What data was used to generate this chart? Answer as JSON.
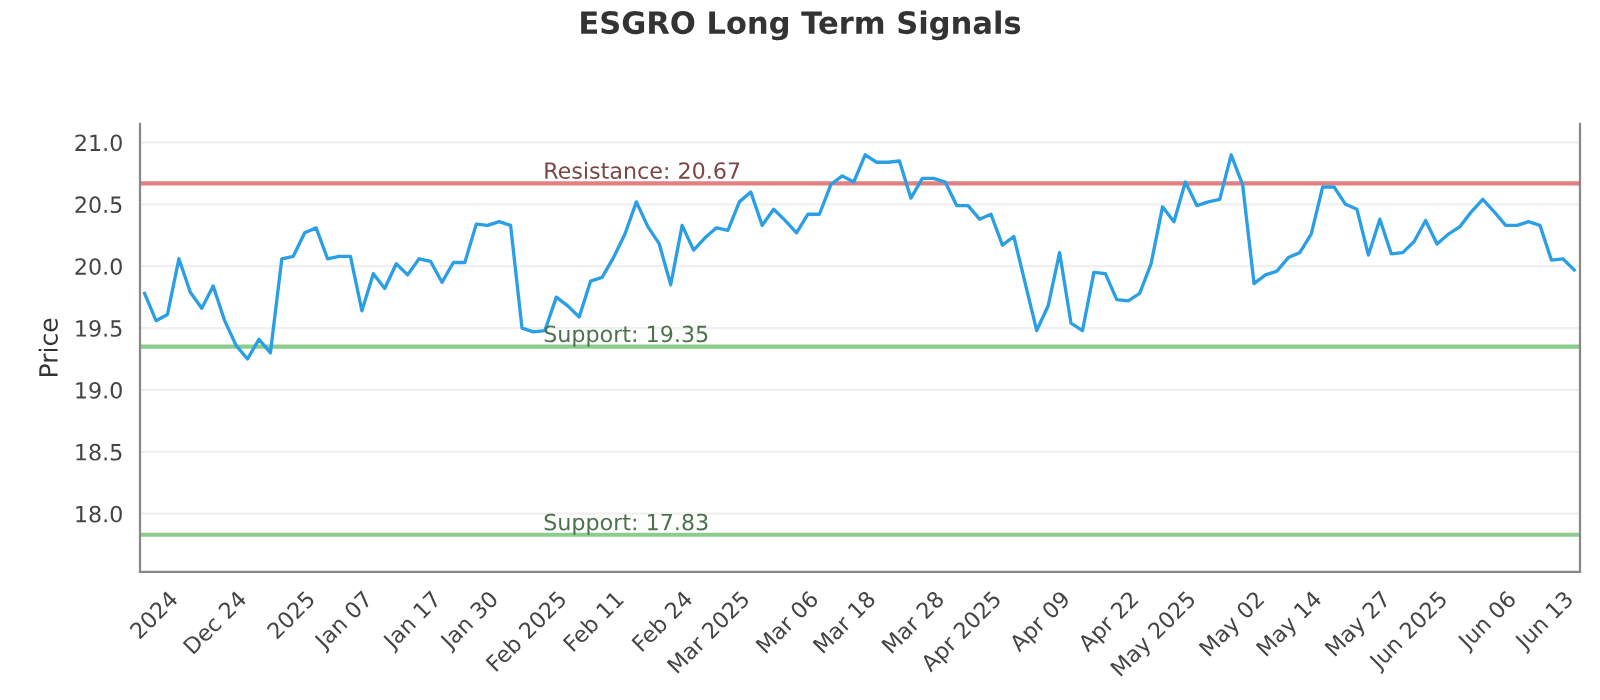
{
  "chart_data": {
    "type": "line",
    "title": "ESGRO Long Term Signals",
    "ylabel": "Price",
    "categories": [
      null,
      null,
      "2024",
      null,
      null,
      null,
      null,
      null,
      "Dec 24",
      null,
      null,
      null,
      null,
      null,
      "2025",
      null,
      null,
      null,
      null,
      "Jan 07",
      null,
      null,
      null,
      null,
      null,
      "Jan 17",
      null,
      null,
      null,
      null,
      "Jan 30",
      null,
      null,
      null,
      null,
      null,
      "Feb 2025",
      null,
      null,
      null,
      null,
      "Feb 11",
      null,
      null,
      null,
      null,
      null,
      "Feb 24",
      null,
      null,
      null,
      null,
      "Mar 2025",
      null,
      null,
      null,
      null,
      null,
      "Mar 06",
      null,
      null,
      null,
      null,
      "Mar 18",
      null,
      null,
      null,
      null,
      null,
      "Mar 28",
      null,
      null,
      null,
      null,
      "Apr 2025",
      null,
      null,
      null,
      null,
      null,
      "Apr 09",
      null,
      null,
      null,
      null,
      null,
      "Apr 22",
      null,
      null,
      null,
      null,
      "May 2025",
      null,
      null,
      null,
      null,
      null,
      "May 02",
      null,
      null,
      null,
      null,
      "May 14",
      null,
      null,
      null,
      null,
      null,
      "May 27",
      null,
      null,
      null,
      null,
      "Jun 2025",
      null,
      null,
      null,
      null,
      null,
      "Jun 06",
      null,
      null,
      null,
      null,
      "Jun 13",
      null
    ],
    "series": [
      {
        "color": "#2b9fe6",
        "values": [
          19.78,
          19.56,
          19.61,
          20.06,
          19.79,
          19.66,
          19.84,
          19.56,
          19.36,
          19.25,
          19.41,
          19.3,
          20.06,
          20.08,
          20.27,
          20.31,
          20.06,
          20.08,
          20.08,
          19.64,
          19.94,
          19.82,
          20.02,
          19.93,
          20.06,
          20.04,
          19.87,
          20.03,
          20.03,
          20.34,
          20.33,
          20.36,
          20.33,
          19.5,
          19.47,
          19.48,
          19.75,
          19.68,
          19.59,
          19.88,
          19.91,
          20.07,
          20.26,
          20.52,
          20.32,
          20.18,
          19.85,
          20.33,
          20.13,
          20.23,
          20.31,
          20.29,
          20.52,
          20.6,
          20.33,
          20.46,
          20.37,
          20.27,
          20.42,
          20.42,
          20.66,
          20.73,
          20.68,
          20.9,
          20.84,
          20.84,
          20.85,
          20.55,
          20.71,
          20.71,
          20.68,
          20.49,
          20.49,
          20.38,
          20.42,
          20.17,
          20.24,
          19.86,
          19.48,
          19.68,
          20.11,
          19.54,
          19.48,
          19.95,
          19.94,
          19.73,
          19.72,
          19.78,
          20.02,
          20.48,
          20.36,
          20.68,
          20.49,
          20.52,
          20.54,
          20.9,
          20.66,
          19.86,
          19.93,
          19.96,
          20.07,
          20.11,
          20.26,
          20.64,
          20.64,
          20.5,
          20.46,
          20.09,
          20.38,
          20.1,
          20.11,
          20.2,
          20.37,
          20.18,
          20.26,
          20.32,
          20.44,
          20.54,
          20.44,
          20.33,
          20.33,
          20.36,
          20.33,
          20.05,
          20.06,
          19.97
        ]
      }
    ],
    "ylim": [
      17.53,
      21.15
    ],
    "yticks": [
      {
        "value": 18.0,
        "label": "18.0"
      },
      {
        "value": 18.5,
        "label": "18.5"
      },
      {
        "value": 19.0,
        "label": "19.0"
      },
      {
        "value": 19.5,
        "label": "19.5"
      },
      {
        "value": 20.0,
        "label": "20.0"
      },
      {
        "value": 20.5,
        "label": "20.5"
      },
      {
        "value": 21.0,
        "label": "21.0"
      }
    ],
    "grid": "y",
    "marker": "none",
    "line_style": "solid",
    "ref_lines": [
      {
        "axis": "y",
        "value": 20.67,
        "label": "Resistance: 20.67",
        "color": "#e08080"
      },
      {
        "axis": "y",
        "value": 19.35,
        "label": "Support: 19.35",
        "color": "#8ccc8c"
      },
      {
        "axis": "y",
        "value": 17.83,
        "label": "Support: 17.83",
        "color": "#8ccc8c"
      }
    ]
  }
}
